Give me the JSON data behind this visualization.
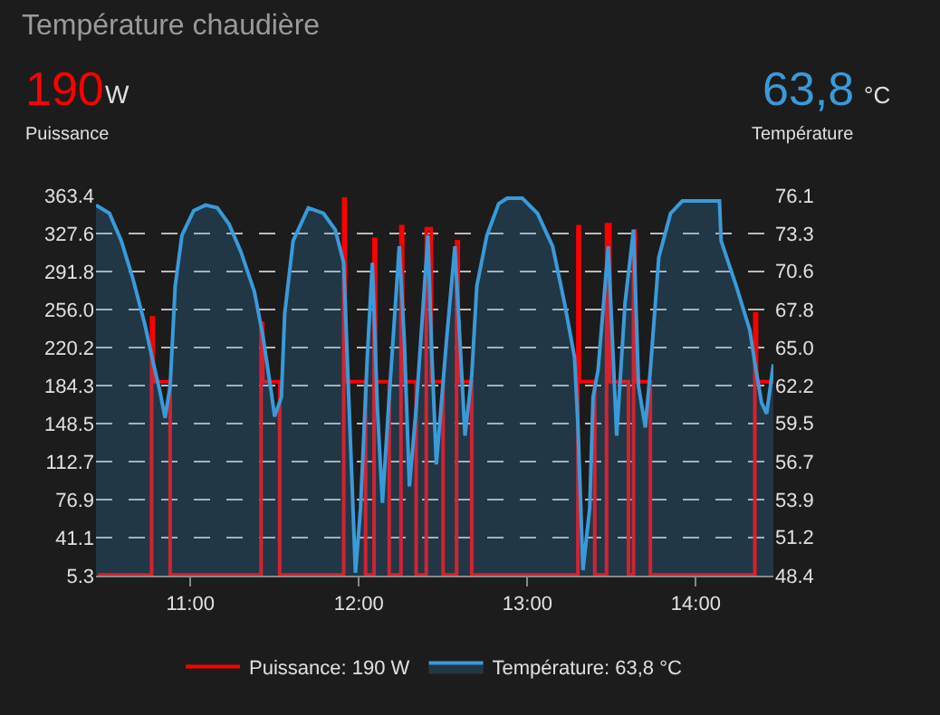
{
  "chart_data": {
    "type": "step",
    "title": "Température chaudière",
    "annotations": [
      "190",
      "W",
      "Puissance",
      "63,8",
      "°C",
      "Température"
    ],
    "xlim": [
      10.44,
      14.46
    ],
    "xticks": [
      {
        "value": 11,
        "label": "11:00"
      },
      {
        "value": 12,
        "label": "12:00"
      },
      {
        "value": 13,
        "label": "13:00"
      },
      {
        "value": 14,
        "label": "14:00"
      }
    ],
    "ylim": [
      5.3,
      363.4
    ],
    "yticks": [
      5.3,
      41.1,
      76.9,
      112.7,
      148.5,
      184.3,
      220.2,
      {
        "value": 256,
        "label": "256.0"
      },
      291.8,
      327.6,
      363.4
    ],
    "y2lim": [
      48.4,
      76.1
    ],
    "y2ticks": [
      48.4,
      51.2,
      53.9,
      56.7,
      59.5,
      62.2,
      {
        "value": 65,
        "label": "65.0"
      },
      67.8,
      70.6,
      73.3,
      76.1
    ],
    "grid": "y",
    "legend": "bottom",
    "marker": "none",
    "series": [
      {
        "name": "Puissance: 190 W",
        "color": "#ff0000",
        "x": [
          10.45,
          10.77,
          10.78,
          10.88,
          11.42,
          11.43,
          11.53,
          11.91,
          11.92,
          12.04,
          12.09,
          12.1,
          12.18,
          12.25,
          12.26,
          12.34,
          12.4,
          12.43,
          12.5,
          12.58,
          12.59,
          12.67,
          13.3,
          13.31,
          13.4,
          13.47,
          13.49,
          13.6,
          13.63,
          13.64,
          13.73,
          14.35,
          14.36,
          14.46
        ],
        "values": [
          6,
          248,
          188,
          6,
          243,
          188,
          6,
          360,
          188,
          6,
          322,
          188,
          6,
          334,
          188,
          6,
          332,
          188,
          6,
          320,
          188,
          6,
          334,
          188,
          6,
          336,
          188,
          6,
          330,
          188,
          6,
          252,
          188,
          190
        ]
      },
      {
        "name": "Température: 63,8 °C",
        "type": "area",
        "axis": "y2",
        "color": "#3a9ad9",
        "x": [
          10.44,
          10.52,
          10.59,
          10.66,
          10.73,
          10.78,
          10.82,
          10.85,
          10.88,
          10.91,
          10.95,
          11.02,
          11.09,
          11.16,
          11.23,
          11.3,
          11.38,
          11.43,
          11.48,
          11.5,
          11.54,
          11.56,
          11.61,
          11.7,
          11.79,
          11.86,
          11.91,
          11.94,
          11.98,
          12.01,
          12.05,
          12.08,
          12.11,
          12.14,
          12.18,
          12.24,
          12.27,
          12.3,
          12.34,
          12.41,
          12.43,
          12.46,
          12.52,
          12.57,
          12.63,
          12.67,
          12.7,
          12.76,
          12.83,
          12.88,
          12.97,
          13.06,
          13.15,
          13.22,
          13.28,
          13.3,
          13.33,
          13.37,
          13.39,
          13.42,
          13.48,
          13.53,
          13.58,
          13.63,
          13.66,
          13.7,
          13.73,
          13.78,
          13.85,
          13.92,
          14.14,
          14.15,
          14.24,
          14.32,
          14.35,
          14.39,
          14.42,
          14.46
        ],
        "values": [
          75.4,
          74.8,
          72.8,
          70.0,
          66.7,
          63.9,
          61.8,
          59.9,
          62.2,
          69.5,
          73.2,
          75.0,
          75.4,
          75.2,
          74.0,
          72.0,
          69.1,
          65.9,
          61.8,
          60.0,
          61.4,
          67.5,
          72.8,
          75.2,
          74.8,
          73.6,
          71.2,
          61.4,
          48.6,
          53.3,
          64.3,
          71.2,
          60.6,
          53.7,
          61.4,
          72.4,
          65.5,
          54.9,
          60.6,
          73.2,
          65.5,
          56.5,
          65.5,
          72.4,
          58.6,
          63.0,
          69.5,
          73.2,
          75.5,
          75.9,
          75.9,
          74.8,
          72.4,
          68.3,
          64.3,
          59.4,
          48.8,
          53.3,
          61.4,
          63.4,
          72.4,
          58.6,
          68.3,
          73.6,
          62.2,
          59.2,
          63.4,
          71.6,
          74.8,
          75.7,
          75.7,
          72.8,
          69.5,
          66.3,
          63.9,
          61.0,
          60.2,
          63.8
        ]
      }
    ]
  }
}
